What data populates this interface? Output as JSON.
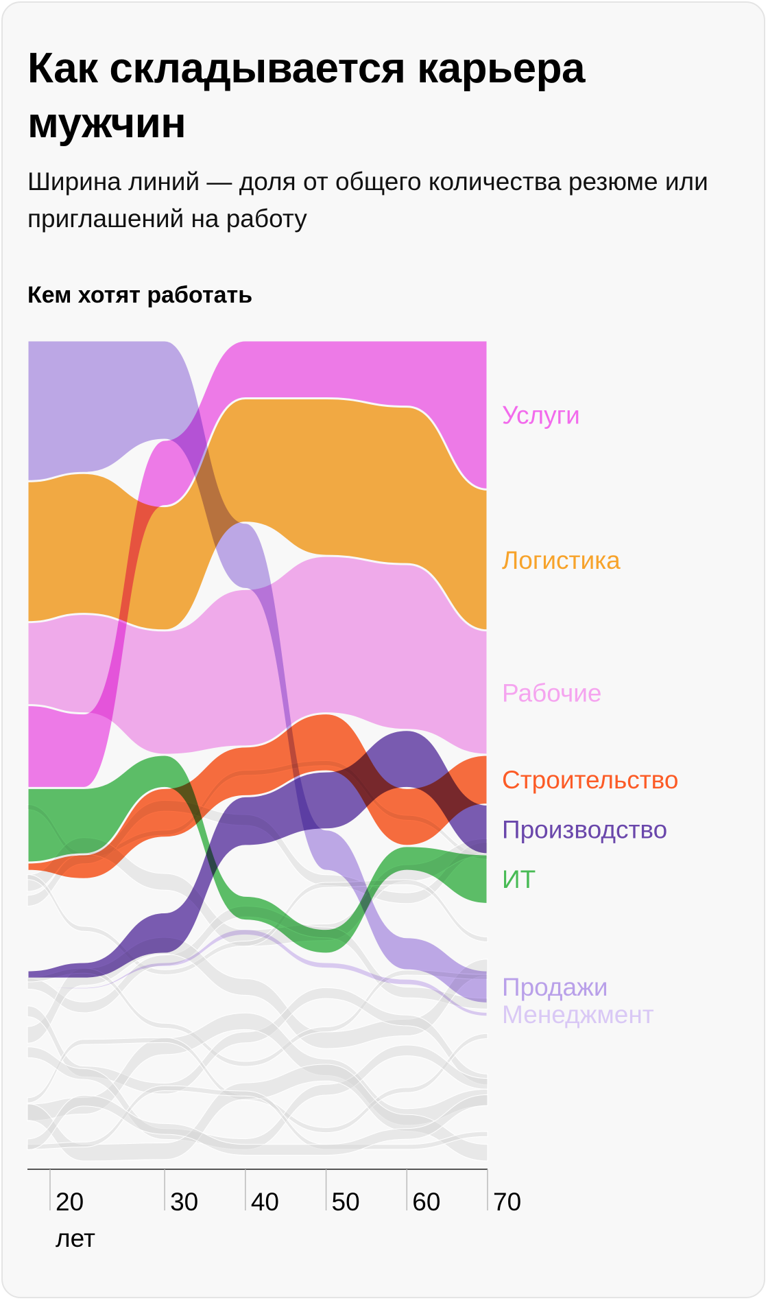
{
  "title": "Как складывается карьера мужчин",
  "subtitle": "Ширина линий — доля от общего количества резюме или приглашений на работу",
  "section_title": "Кем хотят работать",
  "chart_data": {
    "type": "area",
    "x": [
      17,
      20,
      30,
      40,
      50,
      60,
      70
    ],
    "x_ticks": [
      "20",
      "30",
      "40",
      "50",
      "60",
      "70"
    ],
    "x_unit": "лет",
    "series": [
      {
        "name": "Услуги",
        "color": "#f26bec",
        "values": [
          10,
          9,
          8,
          7,
          7,
          8,
          18
        ]
      },
      {
        "name": "Логистика",
        "color": "#f7a32b",
        "values": [
          17,
          17,
          15,
          15,
          19,
          19,
          17
        ]
      },
      {
        "name": "Рабочие",
        "color": "#f5a4ef",
        "values": [
          10,
          12,
          15,
          19,
          19,
          20,
          15
        ]
      },
      {
        "name": "Строительство",
        "color": "#fc5b26",
        "values": [
          1,
          3,
          6,
          6,
          7,
          7,
          6
        ]
      },
      {
        "name": "Производство",
        "color": "#6a47ab",
        "values": [
          1,
          2,
          5,
          6,
          7,
          7,
          6
        ]
      },
      {
        "name": "ИТ",
        "color": "#48bb55",
        "values": [
          9,
          8,
          4,
          3,
          3,
          3,
          6
        ]
      },
      {
        "name": "Продажи",
        "color": "#b9a0e9",
        "values": [
          17,
          16,
          12,
          8,
          5,
          4,
          4
        ]
      },
      {
        "name": "Менеджмент",
        "color": "#d9c8f5",
        "values": [
          0.2,
          0.3,
          0.6,
          0.8,
          0.8,
          0.8,
          0.6
        ]
      }
    ],
    "ylim": [
      0,
      100
    ],
    "grid": false,
    "legend": "right"
  }
}
